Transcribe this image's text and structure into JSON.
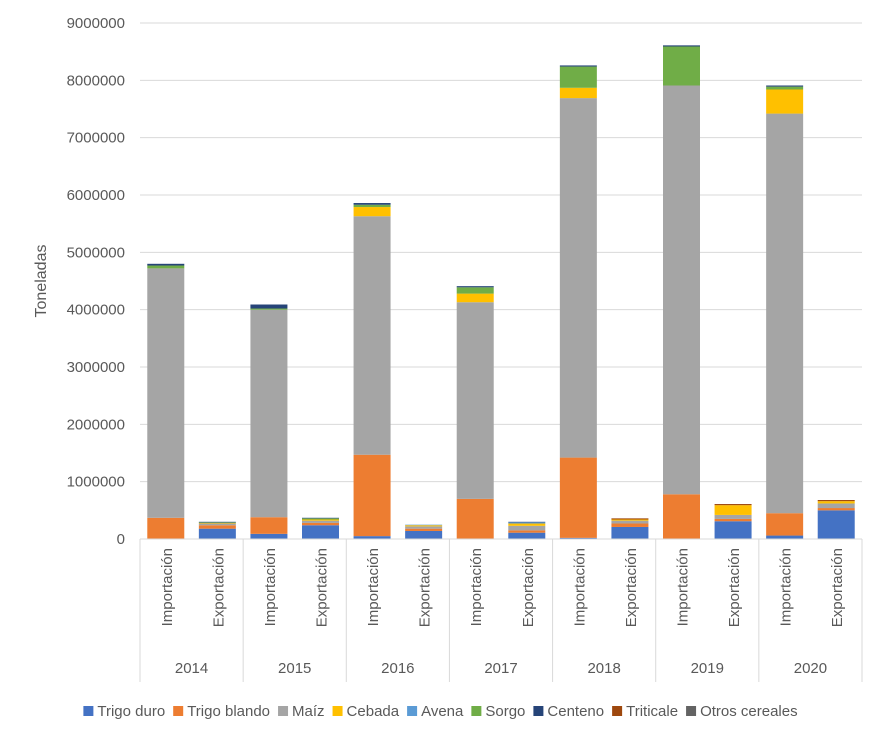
{
  "chart_data": {
    "type": "bar",
    "stacked": true,
    "title": "",
    "xlabel": "",
    "ylabel": "Toneladas",
    "ylim": [
      0,
      9000000
    ],
    "yticks": [
      0,
      1000000,
      2000000,
      3000000,
      4000000,
      5000000,
      6000000,
      7000000,
      8000000,
      9000000
    ],
    "ytick_labels": [
      "0",
      "1000000",
      "2000000",
      "3000000",
      "4000000",
      "5000000",
      "6000000",
      "7000000",
      "8000000",
      "9000000"
    ],
    "grid": true,
    "legend_position": "bottom",
    "groups": [
      "2014",
      "2015",
      "2016",
      "2017",
      "2018",
      "2019",
      "2020"
    ],
    "subcategories": [
      "Importación",
      "Exportación"
    ],
    "categories": [
      "2014 Importación",
      "2014 Exportación",
      "2015 Importación",
      "2015 Exportación",
      "2016 Importación",
      "2016 Exportación",
      "2017 Importación",
      "2017 Exportación",
      "2018 Importación",
      "2018 Exportación",
      "2019 Importación",
      "2019 Exportación",
      "2020 Importación",
      "2020 Exportación"
    ],
    "series": [
      {
        "name": "Trigo duro",
        "color": "#4472C4",
        "values": [
          0,
          180000,
          90000,
          240000,
          50000,
          140000,
          0,
          110000,
          20000,
          210000,
          0,
          310000,
          60000,
          500000
        ]
      },
      {
        "name": "Trigo blando",
        "color": "#ED7D31",
        "values": [
          370000,
          60000,
          290000,
          40000,
          1420000,
          40000,
          700000,
          40000,
          1400000,
          60000,
          780000,
          40000,
          390000,
          40000
        ]
      },
      {
        "name": "Maíz",
        "color": "#A5A5A5",
        "values": [
          4350000,
          30000,
          3620000,
          40000,
          4160000,
          40000,
          3430000,
          80000,
          6270000,
          50000,
          7130000,
          70000,
          6970000,
          80000
        ]
      },
      {
        "name": "Cebada",
        "color": "#FFC000",
        "values": [
          0,
          10000,
          0,
          20000,
          160000,
          20000,
          150000,
          40000,
          180000,
          20000,
          0,
          170000,
          420000,
          40000
        ]
      },
      {
        "name": "Avena",
        "color": "#5B9BD5",
        "values": [
          0,
          0,
          0,
          0,
          0,
          10000,
          0,
          20000,
          0,
          0,
          0,
          0,
          0,
          0
        ]
      },
      {
        "name": "Sorgo",
        "color": "#70AD47",
        "values": [
          50000,
          10000,
          20000,
          20000,
          40000,
          0,
          110000,
          0,
          370000,
          0,
          680000,
          0,
          50000,
          0
        ]
      },
      {
        "name": "Centeno",
        "color": "#264478",
        "values": [
          30000,
          10000,
          70000,
          10000,
          30000,
          0,
          20000,
          10000,
          20000,
          0,
          20000,
          0,
          20000,
          0
        ]
      },
      {
        "name": "Triticale",
        "color": "#9E480E",
        "values": [
          0,
          0,
          0,
          0,
          0,
          0,
          0,
          0,
          0,
          20000,
          0,
          20000,
          0,
          20000
        ]
      },
      {
        "name": "Otros cereales",
        "color": "#636363",
        "values": [
          0,
          0,
          0,
          0,
          0,
          0,
          0,
          0,
          0,
          0,
          0,
          0,
          0,
          0
        ]
      }
    ]
  }
}
